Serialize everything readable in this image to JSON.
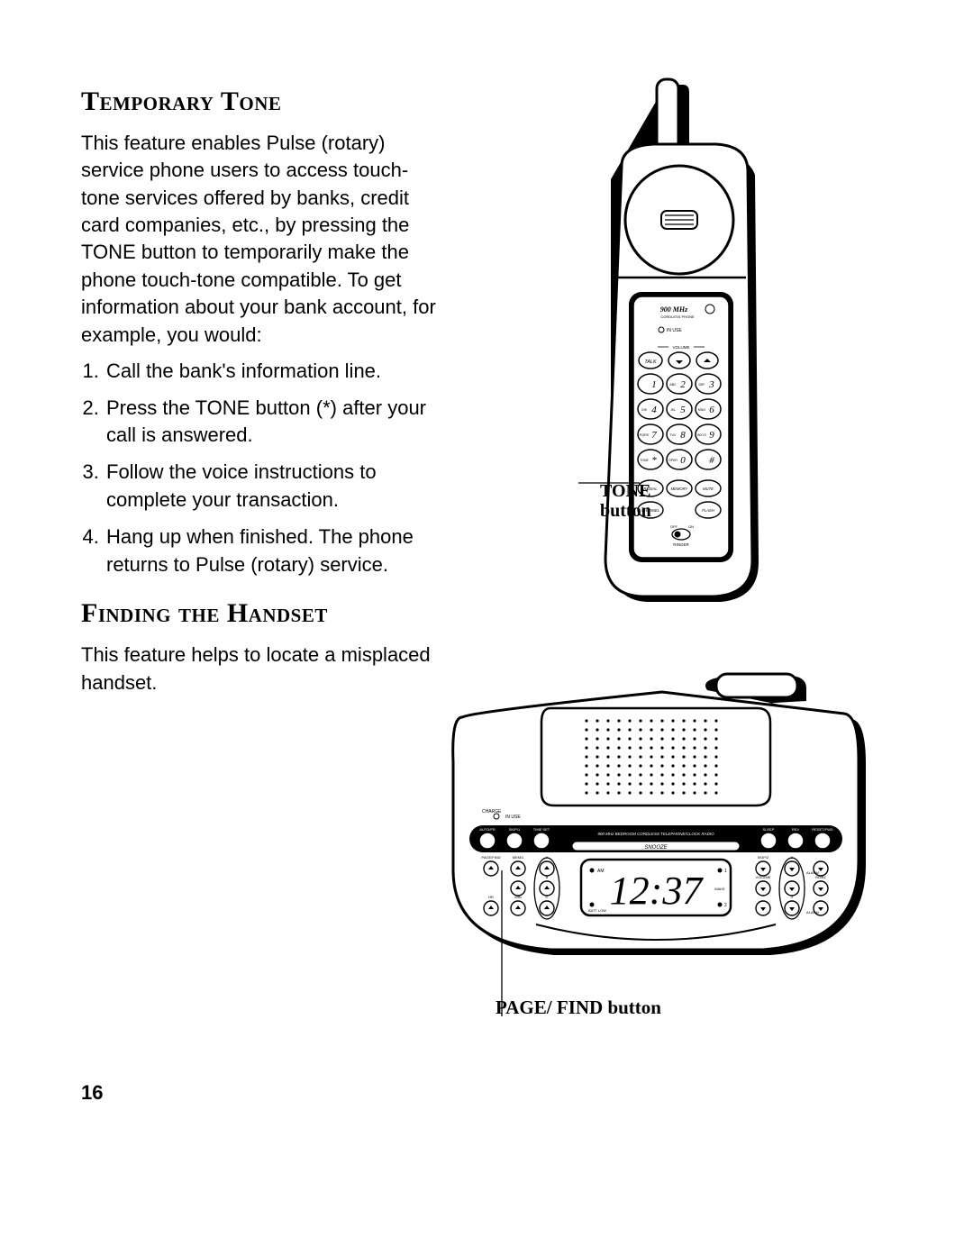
{
  "page_number": "16",
  "section1": {
    "heading": "Temporary Tone",
    "intro": "This feature enables Pulse (rotary) service phone users to access touch-tone services offered by banks, credit card companies, etc., by pressing the TONE button to temporarily make the phone touch-tone compatible. To get information about your bank account, for example, you would:",
    "steps": [
      "Call the bank's information line.",
      "Press the TONE button (*) after your call is answered.",
      "Follow the voice instructions to complete your transaction.",
      "Hang up when finished. The phone returns to Pulse (rotary) service."
    ]
  },
  "section2": {
    "heading": "Finding the Handset",
    "intro": "This feature helps to locate a misplaced handset."
  },
  "handset_figure": {
    "callout": "TONE button",
    "display_label_mhz": "900 MHz",
    "display_sublabel": "CORDLESS PHONE",
    "inuse_label": "IN USE",
    "volume_label": "VOLUME",
    "talk_label": "TALK",
    "keypad": [
      {
        "d": "1",
        "l": ""
      },
      {
        "d": "2",
        "l": "ABC"
      },
      {
        "d": "3",
        "l": "DEF"
      },
      {
        "d": "4",
        "l": "GHI"
      },
      {
        "d": "5",
        "l": "JKL"
      },
      {
        "d": "6",
        "l": "MNO"
      },
      {
        "d": "7",
        "l": "PQRS"
      },
      {
        "d": "8",
        "l": "TUV"
      },
      {
        "d": "9",
        "l": "WXYZ"
      },
      {
        "d": "*",
        "l": "TONE"
      },
      {
        "d": "0",
        "l": "OPER"
      },
      {
        "d": "#",
        "l": ""
      }
    ],
    "func_row": [
      "REDIAL",
      "MEMORY",
      "MUTE"
    ],
    "func_row2": [
      "CHANNEL",
      "",
      "FLASH"
    ],
    "ringer_label": "RINGER",
    "ringer_off": "OFF",
    "ringer_on": "ON"
  },
  "base_figure": {
    "caption": "PAGE/ FIND button",
    "charge_label": "CHARGE",
    "inuse_label": "IN USE",
    "top_btn_left": [
      "AUTO/FR",
      "SKIP/1",
      "TIME SET"
    ],
    "center_band": "900 MHz BEDROOM CORDLESS TELEPHONE/CLOCK RADIO",
    "top_btn_right": [
      "SLEEP",
      "REV",
      "RESET/FWD"
    ],
    "snooze": "SNOOZE",
    "left_small_btns": [
      "PAGE/FIND",
      "MEMO",
      "A",
      "B",
      "C",
      "HR",
      "MIN"
    ],
    "clock": "12:37",
    "clock_side_left": [
      "AM",
      "BATT LOW"
    ],
    "clock_side_right": [
      "1",
      "WAKE",
      "2"
    ],
    "right_small_btns": [
      "SKIP/2",
      "1",
      "VOLUME",
      "ALARM",
      "2",
      "ALARM",
      "VOLUME",
      "RD/BZ ON/OFF"
    ]
  },
  "colors": {
    "ink": "#000000",
    "paper": "#ffffff"
  }
}
